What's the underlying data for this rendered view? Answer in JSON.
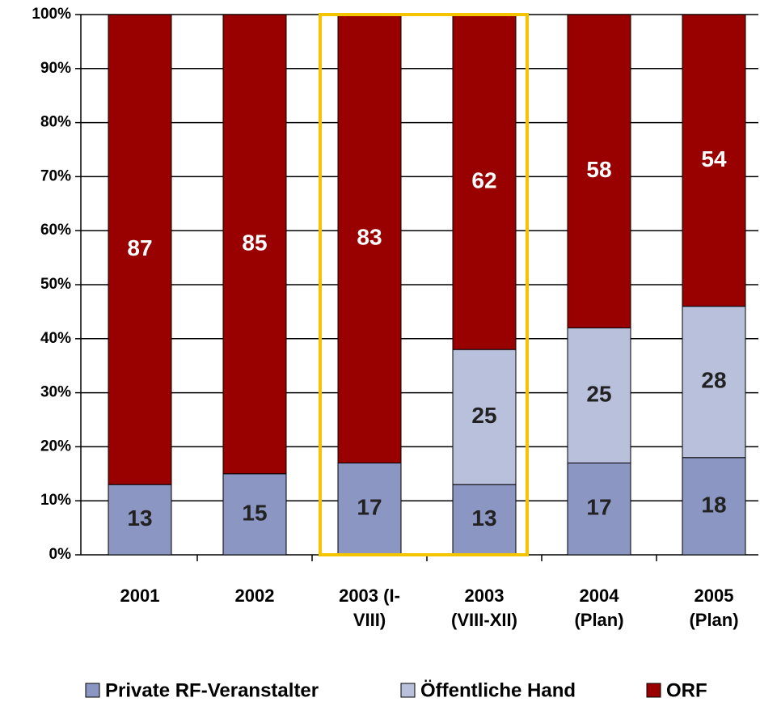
{
  "chart_data": {
    "type": "stacked_bar",
    "categories": [
      "2001",
      "2002",
      "2003 (I-\nVIII)",
      "2003\n(VIII-XII)",
      "2004\n(Plan)",
      "2005\n(Plan)"
    ],
    "series": [
      {
        "name": "Private RF-Veranstalter",
        "color": "#8c96c2",
        "values": [
          13,
          15,
          17,
          13,
          17,
          18
        ]
      },
      {
        "name": "Öffentliche Hand",
        "color": "#b8c0dc",
        "values": [
          null,
          null,
          null,
          25,
          25,
          28
        ]
      },
      {
        "name": "ORF",
        "color": "#990000",
        "values": [
          87,
          85,
          83,
          62,
          58,
          54
        ]
      }
    ],
    "ylim": [
      0,
      100
    ],
    "yticks": [
      {
        "value": 0,
        "label": "0%"
      },
      {
        "value": 10,
        "label": "10%"
      },
      {
        "value": 20,
        "label": "20%"
      },
      {
        "value": 30,
        "label": "30%"
      },
      {
        "value": 40,
        "label": "40%"
      },
      {
        "value": 50,
        "label": "50%"
      },
      {
        "value": 60,
        "label": "60%"
      },
      {
        "value": 70,
        "label": "70%"
      },
      {
        "value": 80,
        "label": "80%"
      },
      {
        "value": 90,
        "label": "90%"
      },
      {
        "value": 100,
        "label": "100%"
      }
    ],
    "grid": true,
    "legend": "bottom"
  }
}
